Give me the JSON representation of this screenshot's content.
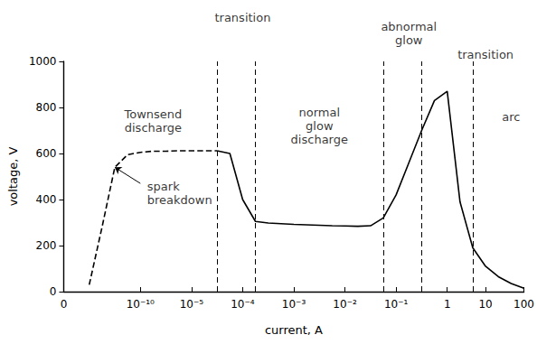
{
  "chart_data": {
    "type": "line",
    "x_label": "current, A",
    "y_label": "voltage, V",
    "categories": [
      "0",
      null,
      null,
      null,
      null,
      null,
      "10⁻¹⁰",
      null,
      null,
      null,
      "10⁻⁵",
      null,
      null,
      null,
      "10⁻⁴",
      null,
      null,
      null,
      "10⁻³",
      null,
      null,
      null,
      "10⁻²",
      null,
      null,
      null,
      "10⁻¹",
      null,
      null,
      null,
      "1",
      null,
      null,
      "10",
      null,
      null,
      "100"
    ],
    "series": [
      {
        "color": "#000000",
        "line_style": "dashed",
        "values": [
          null,
          null,
          30,
          280,
          540,
          595,
          605,
          610,
          610,
          612,
          612,
          612,
          612,
          null,
          null,
          null,
          null,
          null,
          null,
          null,
          null,
          null,
          null,
          null,
          null,
          null,
          null,
          null,
          null,
          null,
          null,
          null,
          null,
          null,
          null,
          null,
          null
        ]
      },
      {
        "color": "#000000",
        "line_style": "solid",
        "values": [
          null,
          null,
          null,
          null,
          null,
          null,
          null,
          null,
          null,
          null,
          null,
          null,
          612,
          600,
          400,
          305,
          298,
          295,
          292,
          290,
          288,
          286,
          285,
          284,
          286,
          320,
          420,
          560,
          700,
          830,
          870,
          390,
          190,
          110,
          65,
          35,
          15
        ]
      }
    ],
    "ylim": [
      0,
      1000
    ],
    "yticks": [
      0,
      200,
      400,
      600,
      800,
      1000
    ],
    "grid": false,
    "dividers": [
      12,
      15,
      25,
      28,
      32
    ],
    "annotations": [
      {
        "text": "Townsend discharge",
        "x": 6.5,
        "y": 740
      },
      {
        "text": "transition",
        "x": 13.5,
        "y": 1190
      },
      {
        "text": "normal glow discharge",
        "x": 19.5,
        "y": 720
      },
      {
        "text": "abnormal glow",
        "x": 26.5,
        "y": 1120
      },
      {
        "text": "transition",
        "x": 32.5,
        "y": 1030
      },
      {
        "text": "arc",
        "x": 35,
        "y": 760
      },
      {
        "text": "spark breakdown",
        "x": 6,
        "y": 470,
        "arrow_to": 4
      }
    ]
  }
}
